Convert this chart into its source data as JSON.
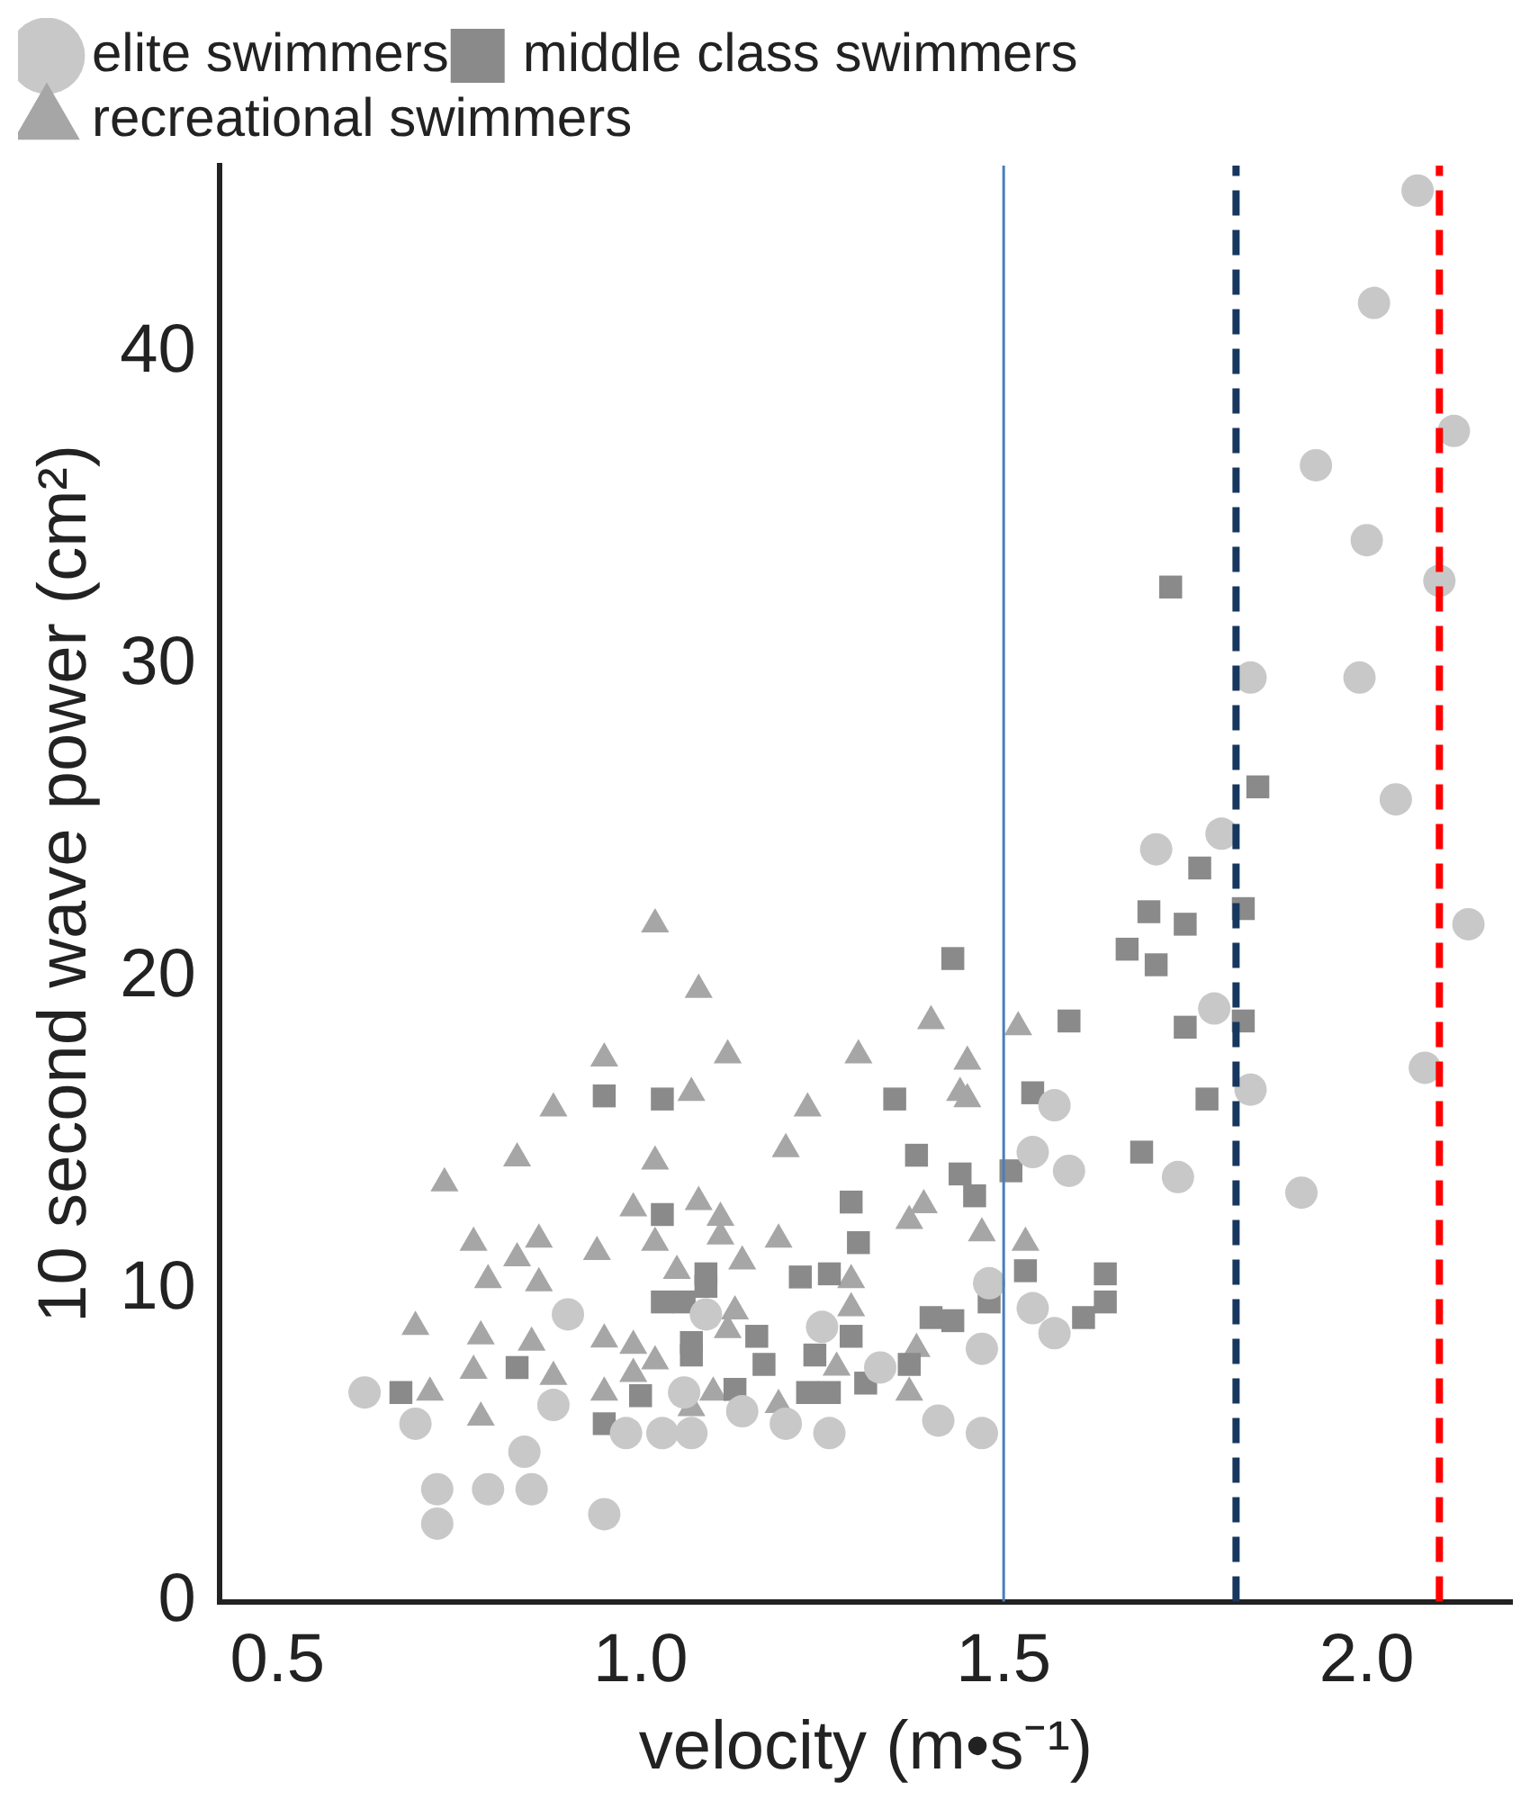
{
  "chart_data": {
    "type": "scatter",
    "xlabel": "velocity (m•s⁻¹)",
    "ylabel": "10 second wave power (cm²)",
    "xlim": [
      0.42,
      2.2
    ],
    "ylim": [
      0,
      46
    ],
    "xticks": [
      0.5,
      {
        "value": 1,
        "label": "1.0"
      },
      1.5,
      {
        "value": 2,
        "label": "2.0"
      }
    ],
    "yticks": [
      0,
      10,
      20,
      30,
      40
    ],
    "grid": false,
    "legend": "top left",
    "ref_lines": [
      {
        "axis": "x",
        "value": 1.5,
        "color": "#4a7ebb",
        "line_style": "solid"
      },
      {
        "axis": "x",
        "value": 1.82,
        "color": "#17375e",
        "line_style": "dashed"
      },
      {
        "axis": "x",
        "value": 2.1,
        "color": "#ff0000",
        "line_style": "dashed"
      }
    ],
    "series": [
      {
        "name": "elite swimmers",
        "color": "#c8c8c8",
        "marker": "circle",
        "x": [
          0.62,
          0.69,
          0.72,
          0.72,
          0.79,
          0.85,
          0.84,
          0.95,
          0.9,
          0.88,
          0.98,
          1.03,
          1.07,
          1.06,
          1.09,
          1.14,
          1.2,
          1.26,
          1.25,
          1.33,
          1.41,
          1.47,
          1.47,
          1.48,
          1.54,
          1.57,
          1.54,
          1.57,
          1.59,
          1.71,
          1.8,
          1.79,
          1.74,
          1.84,
          1.91,
          2.08,
          2.14,
          2.07,
          2.01,
          2.12,
          1.93,
          2.0,
          2.1,
          1.84,
          1.99,
          2.04
        ],
        "values": [
          6.7,
          5.7,
          2.5,
          3.6,
          3.6,
          3.6,
          4.8,
          2.8,
          9.2,
          6.3,
          5.4,
          5.4,
          5.4,
          6.7,
          9.2,
          6.1,
          5.7,
          5.4,
          8.8,
          7.5,
          5.8,
          5.4,
          8.1,
          10.2,
          14.4,
          15.9,
          9.4,
          8.6,
          13.8,
          24.1,
          24.6,
          19,
          13.6,
          16.4,
          13.1,
          17.1,
          21.7,
          45.2,
          41.6,
          37.5,
          36.4,
          34,
          32.7,
          29.6,
          29.6,
          25.7
        ]
      },
      {
        "name": "middle class swimmers",
        "color": "#8a8a8a",
        "marker": "square",
        "x": [
          0.67,
          0.83,
          0.95,
          1.03,
          1.03,
          1.03,
          0.95,
          1.0,
          1.07,
          1.09,
          1.09,
          1.06,
          1.16,
          1.07,
          1.17,
          1.13,
          1.24,
          1.29,
          1.23,
          1.26,
          1.31,
          1.37,
          1.4,
          1.43,
          1.48,
          1.53,
          1.22,
          1.26,
          1.29,
          1.3,
          1.35,
          1.38,
          1.44,
          1.46,
          1.51,
          1.43,
          1.54,
          1.77,
          1.83,
          1.7,
          1.75,
          1.67,
          1.71,
          1.59,
          1.75,
          1.83,
          1.78,
          1.69,
          1.64,
          1.64,
          1.61,
          1.73,
          1.85
        ],
        "values": [
          6.7,
          7.5,
          16.2,
          16.1,
          12.4,
          9.6,
          5.7,
          6.6,
          8.3,
          10.5,
          10.1,
          9.6,
          8.5,
          7.9,
          7.6,
          6.8,
          7.9,
          8.5,
          6.7,
          6.7,
          7,
          7.6,
          9.1,
          9,
          9.6,
          10.6,
          10.4,
          10.5,
          12.8,
          11.5,
          16.1,
          14.3,
          13.7,
          13,
          13.8,
          20.6,
          16.3,
          23.5,
          22.2,
          22.1,
          21.7,
          20.9,
          20.4,
          18.6,
          18.4,
          18.6,
          16.1,
          14.4,
          10.5,
          9.6,
          9.1,
          32.5,
          26.1
        ]
      },
      {
        "name": "recreational swimmers",
        "color": "#a6a6a6",
        "marker": "triangle",
        "x": [
          1.02,
          1.08,
          0.95,
          0.88,
          0.83,
          0.73,
          1.02,
          0.99,
          1.07,
          1.08,
          0.77,
          0.86,
          0.83,
          0.94,
          1.02,
          0.79,
          0.86,
          1.05,
          0.69,
          0.78,
          0.85,
          0.95,
          0.99,
          1.02,
          0.77,
          0.88,
          0.71,
          0.95,
          0.99,
          0.78,
          1.12,
          1.23,
          1.2,
          1.3,
          1.4,
          1.45,
          1.44,
          1.45,
          1.52,
          1.11,
          1.11,
          1.19,
          1.14,
          1.39,
          1.37,
          1.47,
          1.53,
          1.29,
          1.29,
          1.13,
          1.12,
          1.38,
          1.27,
          1.1,
          1.19,
          1.37,
          1.07
        ],
        "values": [
          21.7,
          19.6,
          17.4,
          15.8,
          14.2,
          13.4,
          14.1,
          12.6,
          16.3,
          12.8,
          11.5,
          11.6,
          11,
          11.2,
          11.5,
          10.3,
          10.2,
          10.6,
          8.8,
          8.5,
          8.3,
          8.4,
          8.2,
          7.7,
          7.4,
          7.2,
          6.7,
          6.7,
          7.3,
          5.9,
          17.5,
          15.8,
          14.5,
          17.5,
          18.6,
          17.3,
          16.3,
          16.1,
          18.4,
          12.3,
          11.7,
          11.6,
          10.9,
          12.7,
          12.2,
          11.8,
          11.5,
          10.3,
          9.4,
          9.3,
          8.7,
          8.1,
          7.5,
          6.7,
          6.3,
          6.7,
          6.2
        ]
      }
    ]
  }
}
